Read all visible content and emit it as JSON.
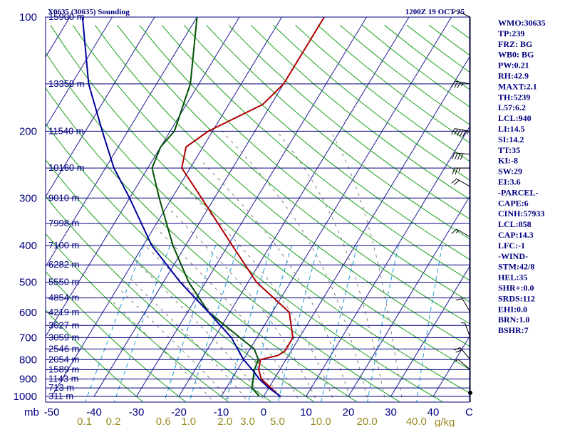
{
  "chart_data": {
    "type": "line",
    "title": "X0635 (30635) Sounding",
    "valid_time": "1200Z 19 OCT 25",
    "pressure_unit": "mb",
    "pressure_levels": [
      100,
      200,
      300,
      400,
      500,
      600,
      700,
      800,
      900,
      1000
    ],
    "heights": [
      {
        "p": 100,
        "label": "15900 m"
      },
      {
        "p": 150,
        "label": "13350 m"
      },
      {
        "p": 200,
        "label": "11540 m"
      },
      {
        "p": 250,
        "label": "10160 m"
      },
      {
        "p": 300,
        "label": "9010 m"
      },
      {
        "p": 350,
        "label": "7998 m"
      },
      {
        "p": 400,
        "label": "7100 m"
      },
      {
        "p": 450,
        "label": "6282 m"
      },
      {
        "p": 500,
        "label": "5550 m"
      },
      {
        "p": 550,
        "label": "4854 m"
      },
      {
        "p": 600,
        "label": "4219 m"
      },
      {
        "p": 650,
        "label": "3627 m"
      },
      {
        "p": 700,
        "label": "3059 m"
      },
      {
        "p": 750,
        "label": "2546 m"
      },
      {
        "p": 800,
        "label": "2054 m"
      },
      {
        "p": 850,
        "label": "1589 m"
      },
      {
        "p": 900,
        "label": "1143 m"
      },
      {
        "p": 950,
        "label": "713 m"
      },
      {
        "p": 1000,
        "label": "311 m"
      }
    ],
    "temperature_axis": {
      "label": "C",
      "ticks": [
        -50,
        -40,
        -30,
        -20,
        -10,
        0,
        10,
        20,
        30,
        40
      ]
    },
    "mixing_ratio_axis": {
      "label": "g/kg",
      "ticks": [
        "0.1",
        "0.2",
        "0.6",
        "1.0",
        "2.0",
        "3.0",
        "5.0",
        "10.0",
        "20.0",
        "40.0"
      ]
    },
    "series": [
      {
        "name": "Temperature",
        "color": "#b00000",
        "points": [
          [
            1000,
            4
          ],
          [
            980,
            2.5
          ],
          [
            950,
            0.5
          ],
          [
            900,
            -3
          ],
          [
            850,
            -5
          ],
          [
            800,
            -6
          ],
          [
            780,
            -2.5
          ],
          [
            760,
            -1.5
          ],
          [
            700,
            -1.5
          ],
          [
            600,
            -6
          ],
          [
            500,
            -18
          ],
          [
            400,
            -29
          ],
          [
            300,
            -43
          ],
          [
            250,
            -52
          ],
          [
            220,
            -54
          ],
          [
            200,
            -51
          ],
          [
            170,
            -42
          ],
          [
            150,
            -40
          ],
          [
            100,
            -40
          ]
        ]
      },
      {
        "name": "Dewpoint",
        "color": "#005000",
        "points": [
          [
            1000,
            -1
          ],
          [
            950,
            -4
          ],
          [
            850,
            -6
          ],
          [
            800,
            -6.5
          ],
          [
            750,
            -9
          ],
          [
            700,
            -14
          ],
          [
            600,
            -25
          ],
          [
            500,
            -34
          ],
          [
            400,
            -43
          ],
          [
            300,
            -53
          ],
          [
            250,
            -59
          ],
          [
            220,
            -60
          ],
          [
            200,
            -59
          ],
          [
            150,
            -62
          ],
          [
            100,
            -70
          ]
        ]
      },
      {
        "name": "Parcel",
        "color": "#00009a",
        "points": [
          [
            1000,
            4
          ],
          [
            950,
            0
          ],
          [
            900,
            -3.5
          ],
          [
            858,
            -6
          ],
          [
            800,
            -10
          ],
          [
            700,
            -16
          ],
          [
            600,
            -25
          ],
          [
            500,
            -36
          ],
          [
            400,
            -48
          ],
          [
            300,
            -60
          ],
          [
            250,
            -68
          ],
          [
            200,
            -76
          ],
          [
            150,
            -86
          ],
          [
            100,
            -97
          ]
        ]
      }
    ],
    "wind": [
      {
        "p": 100,
        "dir": 295,
        "spd": 5
      },
      {
        "p": 150,
        "dir": 280,
        "spd": 35
      },
      {
        "p": 200,
        "dir": 280,
        "spd": 55
      },
      {
        "p": 230,
        "dir": 275,
        "spd": 40
      },
      {
        "p": 250,
        "dir": 270,
        "spd": 25
      },
      {
        "p": 280,
        "dir": 300,
        "spd": 20
      },
      {
        "p": 380,
        "dir": 300,
        "spd": 15
      },
      {
        "p": 600,
        "dir": 330,
        "spd": 10
      },
      {
        "p": 700,
        "dir": 340,
        "spd": 5
      },
      {
        "p": 800,
        "dir": 320,
        "spd": 20
      },
      {
        "p": 850,
        "dir": 310,
        "spd": 5
      }
    ]
  },
  "indices": [
    "WMO:30635",
    "TP:239",
    "FRZ: BG",
    "WB0: BG",
    "PW:0.21",
    "RH:42.9",
    "MAXT:2.1",
    "TH:5239",
    "L57:6.2",
    "LCL:940",
    "LI:14.5",
    "SI:14.2",
    "TT:35",
    "KI:-8",
    "SW:29",
    "EI:3.6",
    "-PARCEL-",
    "CAPE:6",
    "CINH:57933",
    "LCL:858",
    "CAP:14.3",
    "LFC:-1",
    "-WIND-",
    "STM:42/8",
    "HEL:35",
    "SHR+:0.0",
    "SRDS:112",
    "EHI:0.0",
    "BRN:1.0",
    "BSHR:7"
  ],
  "colors": {
    "isobar": "#000080",
    "isotherm": "#1c1c96",
    "dry_adiabat": "#18a018",
    "moist_adiabat": "#808080",
    "mixing_ratio": "#1a9bd8",
    "temperature": "#b00000",
    "dewpoint": "#005000",
    "parcel": "#00009a"
  }
}
